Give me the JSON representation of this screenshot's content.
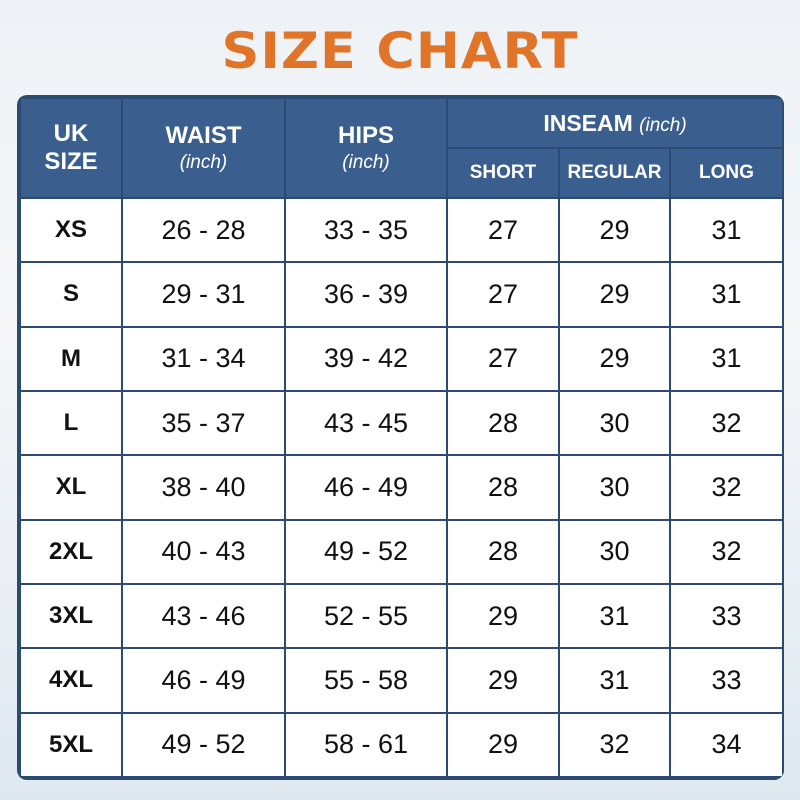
{
  "title": "SIZE CHART",
  "colors": {
    "title": "#e0752a",
    "header": "#3a5f8e",
    "border": "#2c4b72"
  },
  "headers": {
    "size": [
      "UK",
      "SIZE"
    ],
    "waist": {
      "label": "WAIST",
      "unit": "(inch)"
    },
    "hips": {
      "label": "HIPS",
      "unit": "(inch)"
    },
    "inseam": {
      "label": "INSEAM",
      "unit": "(inch)",
      "sub": [
        "SHORT",
        "REGULAR",
        "LONG"
      ]
    }
  },
  "rows": [
    [
      "XS",
      "26 - 28",
      "33 - 35",
      "27",
      "29",
      "31"
    ],
    [
      "S",
      "29 - 31",
      "36 - 39",
      "27",
      "29",
      "31"
    ],
    [
      "M",
      "31 - 34",
      "39 - 42",
      "27",
      "29",
      "31"
    ],
    [
      "L",
      "35 - 37",
      "43 - 45",
      "28",
      "30",
      "32"
    ],
    [
      "XL",
      "38 - 40",
      "46 - 49",
      "28",
      "30",
      "32"
    ],
    [
      "2XL",
      "40 - 43",
      "49 - 52",
      "28",
      "30",
      "32"
    ],
    [
      "3XL",
      "43 - 46",
      "52 - 55",
      "29",
      "31",
      "33"
    ],
    [
      "4XL",
      "46 - 49",
      "55 - 58",
      "29",
      "31",
      "33"
    ],
    [
      "5XL",
      "49 - 52",
      "58 - 61",
      "29",
      "32",
      "34"
    ]
  ]
}
